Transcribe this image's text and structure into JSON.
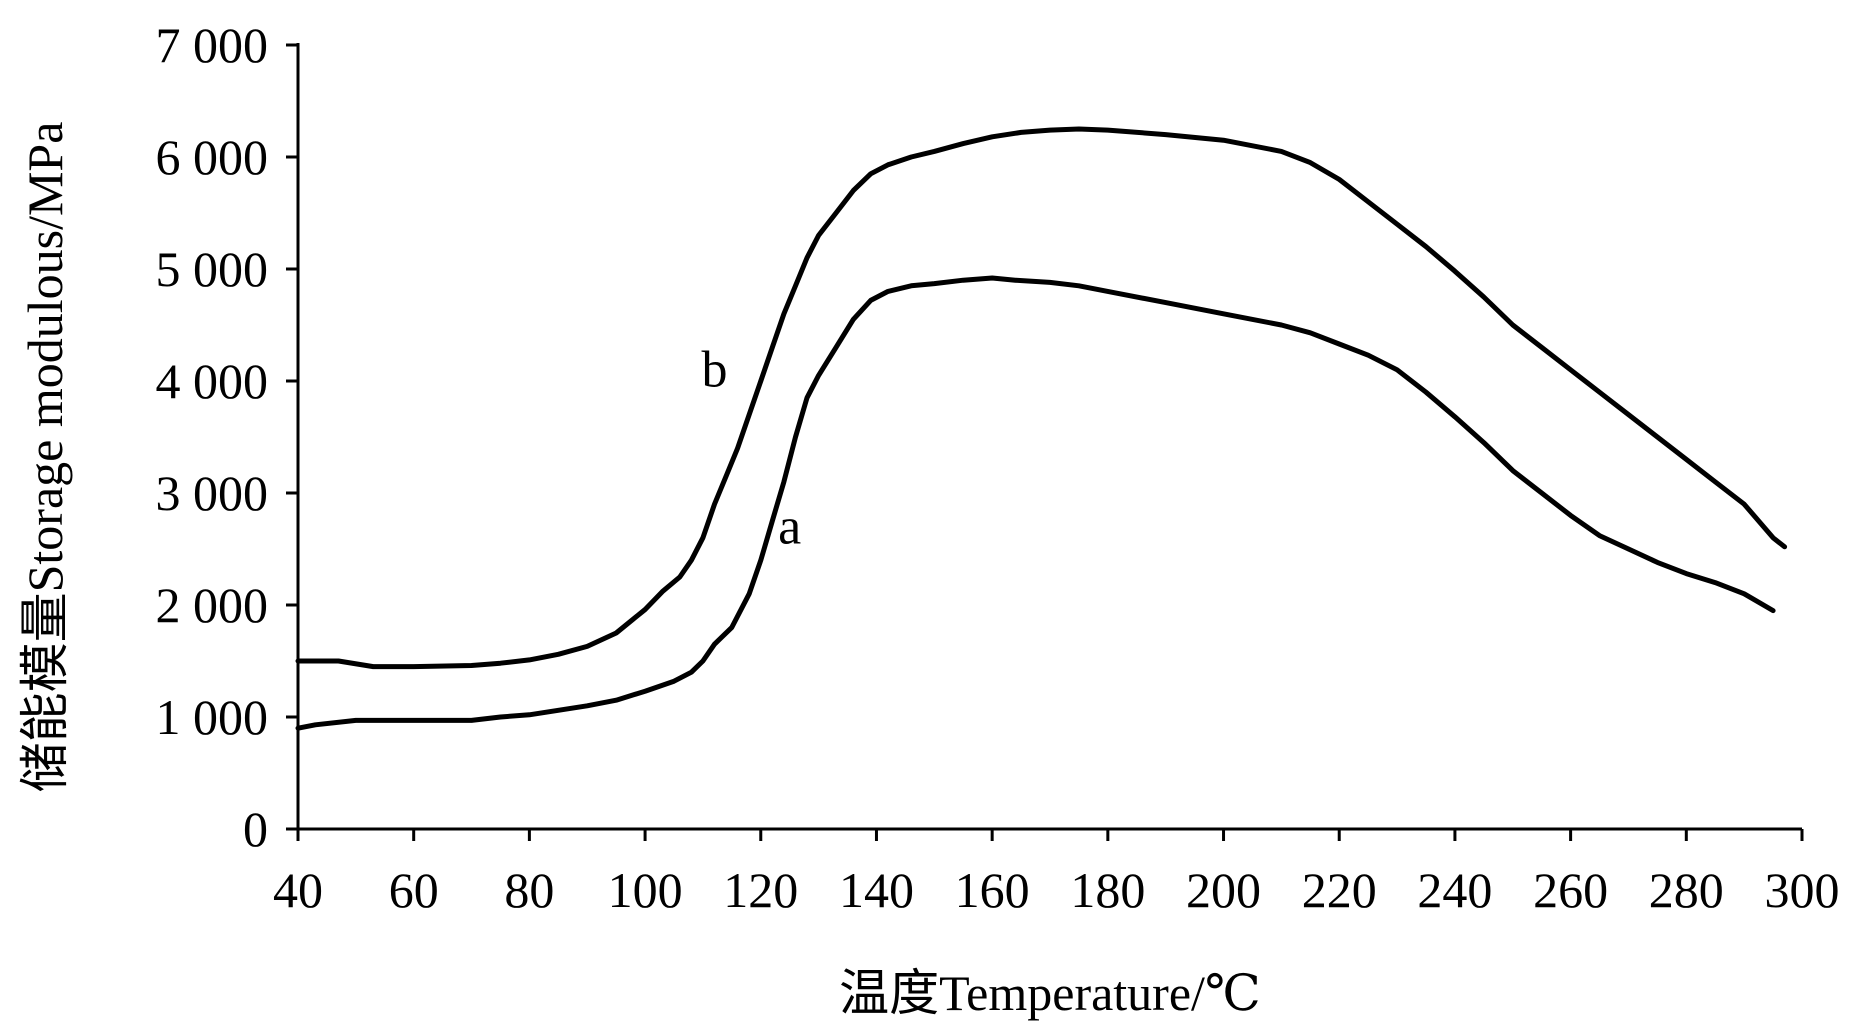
{
  "chart_data": {
    "type": "line",
    "title": "",
    "xlabel": "温度Temperature/℃",
    "ylabel": "储能模量Storage modulous/MPa",
    "xlim": [
      40,
      300
    ],
    "ylim": [
      0,
      7000
    ],
    "xticks": [
      40,
      60,
      80,
      100,
      120,
      140,
      160,
      180,
      200,
      220,
      240,
      260,
      280,
      300
    ],
    "xtick_labels": [
      "40",
      "60",
      "80",
      "100",
      "120",
      "140",
      "160",
      "180",
      "200",
      "220",
      "240",
      "260",
      "280",
      "300"
    ],
    "yticks": [
      0,
      1000,
      2000,
      3000,
      4000,
      5000,
      6000,
      7000
    ],
    "ytick_labels": [
      "0",
      "1 000",
      "2 000",
      "3 000",
      "4 000",
      "5 000",
      "6 000",
      "7 000"
    ],
    "grid": false,
    "legend": "none",
    "line_color": "#000000",
    "series": [
      {
        "name": "a",
        "x": [
          40,
          43,
          50,
          60,
          70,
          75,
          80,
          85,
          90,
          95,
          100,
          105,
          108,
          110,
          112,
          115,
          118,
          120,
          122,
          124,
          126,
          128,
          130,
          133,
          136,
          139,
          142,
          146,
          150,
          155,
          160,
          164,
          170,
          175,
          180,
          190,
          200,
          210,
          215,
          220,
          225,
          230,
          235,
          240,
          245,
          250,
          255,
          260,
          265,
          270,
          275,
          280,
          285,
          290,
          295
        ],
        "y": [
          900,
          930,
          970,
          970,
          970,
          1000,
          1020,
          1060,
          1100,
          1150,
          1230,
          1320,
          1400,
          1500,
          1650,
          1800,
          2100,
          2400,
          2750,
          3100,
          3500,
          3850,
          4050,
          4300,
          4550,
          4720,
          4800,
          4850,
          4870,
          4900,
          4920,
          4900,
          4880,
          4850,
          4800,
          4700,
          4600,
          4500,
          4430,
          4330,
          4230,
          4100,
          3900,
          3680,
          3450,
          3200,
          3000,
          2800,
          2620,
          2500,
          2380,
          2280,
          2200,
          2100,
          1950
        ]
      },
      {
        "name": "b",
        "x": [
          40,
          47,
          53,
          60,
          70,
          75,
          80,
          85,
          90,
          95,
          100,
          103,
          106,
          108,
          110,
          112,
          114,
          116,
          118,
          120,
          122,
          124,
          126,
          128,
          130,
          133,
          136,
          139,
          142,
          146,
          150,
          155,
          160,
          165,
          170,
          175,
          180,
          190,
          200,
          210,
          215,
          220,
          225,
          230,
          235,
          240,
          245,
          250,
          255,
          260,
          265,
          270,
          275,
          280,
          285,
          290,
          295,
          297
        ],
        "y": [
          1500,
          1500,
          1450,
          1450,
          1460,
          1480,
          1510,
          1560,
          1630,
          1750,
          1960,
          2120,
          2250,
          2400,
          2600,
          2900,
          3150,
          3400,
          3700,
          4000,
          4300,
          4600,
          4850,
          5100,
          5300,
          5500,
          5700,
          5850,
          5930,
          6000,
          6050,
          6120,
          6180,
          6220,
          6240,
          6250,
          6240,
          6200,
          6150,
          6050,
          5950,
          5800,
          5600,
          5400,
          5200,
          4980,
          4750,
          4500,
          4300,
          4100,
          3900,
          3700,
          3500,
          3300,
          3100,
          2900,
          2600,
          2520
        ]
      }
    ],
    "annotations": [
      {
        "text": "a",
        "x": 125,
        "y": 2550
      },
      {
        "text": "b",
        "x": 112,
        "y": 3950
      }
    ]
  }
}
